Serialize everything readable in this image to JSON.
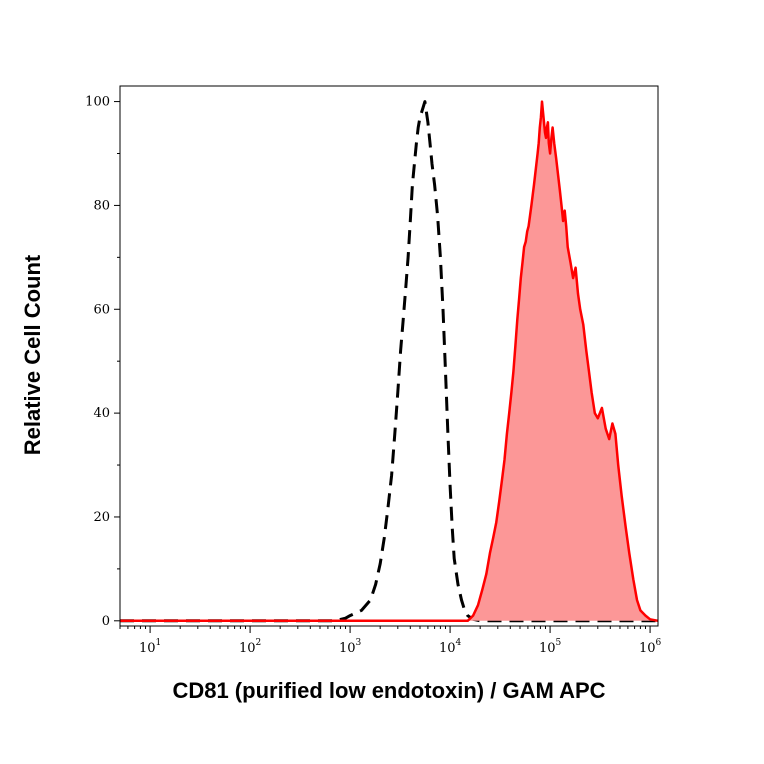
{
  "chart_data": {
    "type": "area",
    "title": "",
    "xlabel": "CD81 (purified low endotoxin) / GAM APC",
    "ylabel": "Relative Cell Count",
    "x_scale": "log",
    "xlim": [
      5,
      1200000
    ],
    "ylim": [
      -1,
      103
    ],
    "grid": false,
    "legend": "none",
    "x_ticks": [
      {
        "value": 10,
        "base": "10",
        "exp": "1"
      },
      {
        "value": 100,
        "base": "10",
        "exp": "2"
      },
      {
        "value": 1000,
        "base": "10",
        "exp": "3"
      },
      {
        "value": 10000,
        "base": "10",
        "exp": "4"
      },
      {
        "value": 100000,
        "base": "10",
        "exp": "5"
      },
      {
        "value": 1000000,
        "base": "10",
        "exp": "6"
      }
    ],
    "y_ticks": [
      {
        "value": 0,
        "label": "0"
      },
      {
        "value": 20,
        "label": "20"
      },
      {
        "value": 40,
        "label": "40"
      },
      {
        "value": 60,
        "label": "60"
      },
      {
        "value": 80,
        "label": "80"
      },
      {
        "value": 100,
        "label": "100"
      }
    ],
    "series": [
      {
        "style": "dashed",
        "color": "#000000",
        "points": [
          [
            5,
            0
          ],
          [
            700,
            0
          ],
          [
            900,
            0.5
          ],
          [
            1000,
            1
          ],
          [
            1300,
            2
          ],
          [
            1600,
            4
          ],
          [
            1800,
            7
          ],
          [
            2000,
            11
          ],
          [
            2200,
            16
          ],
          [
            2400,
            22
          ],
          [
            2600,
            28
          ],
          [
            2800,
            36
          ],
          [
            3000,
            44
          ],
          [
            3200,
            52
          ],
          [
            3400,
            58
          ],
          [
            3600,
            64
          ],
          [
            3800,
            70
          ],
          [
            4000,
            77
          ],
          [
            4200,
            84
          ],
          [
            4400,
            88
          ],
          [
            4600,
            92
          ],
          [
            4800,
            95
          ],
          [
            5000,
            97
          ],
          [
            5200,
            98
          ],
          [
            5400,
            99
          ],
          [
            5600,
            100
          ],
          [
            5800,
            98
          ],
          [
            6000,
            96
          ],
          [
            6300,
            92
          ],
          [
            6600,
            88
          ],
          [
            7000,
            84
          ],
          [
            7500,
            78
          ],
          [
            8000,
            70
          ],
          [
            8500,
            60
          ],
          [
            9000,
            48
          ],
          [
            9500,
            36
          ],
          [
            10000,
            26
          ],
          [
            10500,
            18
          ],
          [
            11000,
            12
          ],
          [
            12000,
            7
          ],
          [
            13000,
            4
          ],
          [
            14000,
            2
          ],
          [
            15000,
            1
          ],
          [
            17000,
            0.3
          ],
          [
            20000,
            0
          ],
          [
            1200000,
            0
          ]
        ]
      },
      {
        "style": "filled",
        "color": "#ff0000",
        "fill": "#fc9797",
        "points": [
          [
            5,
            0
          ],
          [
            15000,
            0
          ],
          [
            17000,
            1
          ],
          [
            19000,
            3
          ],
          [
            21000,
            6
          ],
          [
            23000,
            9
          ],
          [
            25000,
            13
          ],
          [
            27000,
            16
          ],
          [
            29000,
            19
          ],
          [
            31000,
            23
          ],
          [
            33000,
            27
          ],
          [
            35000,
            31
          ],
          [
            37000,
            36
          ],
          [
            39000,
            40
          ],
          [
            41000,
            44
          ],
          [
            43000,
            48
          ],
          [
            45000,
            53
          ],
          [
            47000,
            58
          ],
          [
            49000,
            62
          ],
          [
            51000,
            66
          ],
          [
            53000,
            69
          ],
          [
            55000,
            72
          ],
          [
            57000,
            73
          ],
          [
            59000,
            75
          ],
          [
            61000,
            76
          ],
          [
            63000,
            78
          ],
          [
            65000,
            80
          ],
          [
            67000,
            82
          ],
          [
            69000,
            84
          ],
          [
            71000,
            86
          ],
          [
            73000,
            88
          ],
          [
            75000,
            90
          ],
          [
            77000,
            92
          ],
          [
            79000,
            95
          ],
          [
            81000,
            97
          ],
          [
            83000,
            100
          ],
          [
            85000,
            98
          ],
          [
            87000,
            96
          ],
          [
            89000,
            94
          ],
          [
            91000,
            93
          ],
          [
            93000,
            95
          ],
          [
            95000,
            96
          ],
          [
            97000,
            92
          ],
          [
            100000,
            90
          ],
          [
            103000,
            93
          ],
          [
            106000,
            95
          ],
          [
            110000,
            92
          ],
          [
            115000,
            89
          ],
          [
            120000,
            86
          ],
          [
            125000,
            83
          ],
          [
            130000,
            80
          ],
          [
            135000,
            77
          ],
          [
            140000,
            79
          ],
          [
            145000,
            76
          ],
          [
            150000,
            72
          ],
          [
            160000,
            69
          ],
          [
            170000,
            66
          ],
          [
            180000,
            68
          ],
          [
            190000,
            63
          ],
          [
            200000,
            60
          ],
          [
            215000,
            57
          ],
          [
            230000,
            52
          ],
          [
            245000,
            48
          ],
          [
            260000,
            44
          ],
          [
            280000,
            40
          ],
          [
            300000,
            39
          ],
          [
            330000,
            41
          ],
          [
            360000,
            37
          ],
          [
            390000,
            35
          ],
          [
            420000,
            38
          ],
          [
            450000,
            36
          ],
          [
            480000,
            30
          ],
          [
            520000,
            24
          ],
          [
            570000,
            18
          ],
          [
            620000,
            13
          ],
          [
            680000,
            8
          ],
          [
            740000,
            4
          ],
          [
            800000,
            2
          ],
          [
            900000,
            1
          ],
          [
            1000000,
            0.3
          ],
          [
            1200000,
            0
          ]
        ]
      }
    ]
  }
}
